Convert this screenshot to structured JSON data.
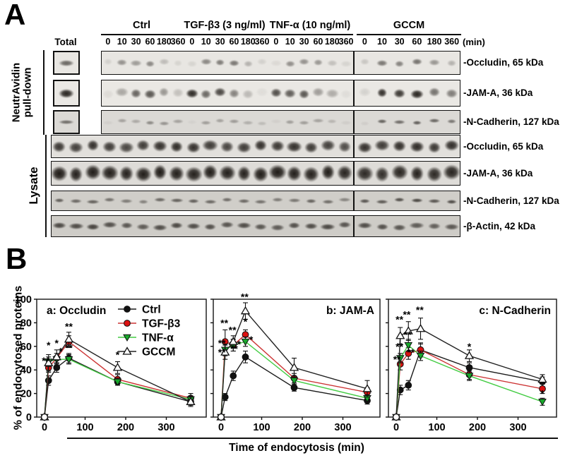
{
  "panel_a": {
    "label": "A",
    "total_label": "Total",
    "unit_label": "(min)",
    "pulldown_label_line1": "NeutrAvidin",
    "pulldown_label_line2": "pull-down",
    "lysate_label": "Lysate",
    "groups": [
      "Ctrl",
      "TGF-β3 (3 ng/ml)",
      "TNF-α (10 ng/ml)",
      "GCCM"
    ],
    "times": [
      "0",
      "10",
      "30",
      "60",
      "180",
      "360"
    ],
    "totals": [
      0.6,
      0.9,
      0.55
    ],
    "blots": [
      {
        "section": "pulldown",
        "label": "-Occludin, 65 kDa",
        "intensities": [
          0.1,
          0.4,
          0.35,
          0.45,
          0.2,
          0.08,
          0.08,
          0.45,
          0.5,
          0.52,
          0.25,
          0.1,
          0.06,
          0.42,
          0.4,
          0.38,
          0.18,
          0.08,
          0.15,
          0.52,
          0.48,
          0.55,
          0.38,
          0.25
        ]
      },
      {
        "section": "pulldown",
        "label": "-JAM-A, 36 kDa",
        "intensities": [
          0.06,
          0.3,
          0.62,
          0.68,
          0.38,
          0.18,
          0.88,
          0.6,
          0.75,
          0.48,
          0.22,
          0.05,
          0.72,
          0.65,
          0.68,
          0.35,
          0.28,
          0.05,
          0.1,
          0.85,
          0.82,
          0.9,
          0.55,
          0.5
        ]
      },
      {
        "section": "pulldown",
        "label": "-N-Cadherin, 127 kDa",
        "intensities": [
          0.05,
          0.28,
          0.25,
          0.4,
          0.35,
          0.28,
          0.04,
          0.3,
          0.28,
          0.32,
          0.22,
          0.15,
          0.05,
          0.3,
          0.3,
          0.28,
          0.18,
          0.06,
          0.06,
          0.6,
          0.55,
          0.62,
          0.58,
          0.5
        ]
      },
      {
        "section": "lysate",
        "label": "-Occludin, 65 kDa",
        "intensities": [
          0.82,
          0.78,
          0.85,
          0.8,
          0.75,
          0.8,
          0.85,
          0.88,
          0.85,
          0.8,
          0.76,
          0.8,
          0.85,
          0.82,
          0.85,
          0.8,
          0.78,
          0.72,
          0.85,
          0.8,
          0.86,
          0.88,
          0.82,
          0.86
        ]
      },
      {
        "section": "lysate",
        "label": "-JAM-A, 36 kDa",
        "intensities": [
          0.95,
          0.92,
          0.94,
          0.93,
          0.92,
          0.94,
          0.95,
          0.93,
          0.92,
          0.94,
          0.93,
          0.92,
          0.94,
          0.95,
          0.93,
          0.92,
          0.94,
          0.9,
          0.88,
          0.85,
          0.9,
          0.92,
          0.88,
          0.9
        ]
      },
      {
        "section": "lysate",
        "label": "-N-Cadherin, 127 kDa",
        "intensities": [
          0.6,
          0.55,
          0.58,
          0.5,
          0.45,
          0.42,
          0.55,
          0.58,
          0.6,
          0.55,
          0.52,
          0.55,
          0.5,
          0.45,
          0.48,
          0.58,
          0.52,
          0.4,
          0.65,
          0.62,
          0.68,
          0.72,
          0.65,
          0.7
        ]
      },
      {
        "section": "lysate",
        "label": "-β-Actin, 42 kDa",
        "intensities": [
          0.72,
          0.7,
          0.74,
          0.68,
          0.65,
          0.62,
          0.7,
          0.72,
          0.7,
          0.68,
          0.66,
          0.7,
          0.65,
          0.62,
          0.68,
          0.7,
          0.72,
          0.66,
          0.7,
          0.68,
          0.66,
          0.62,
          0.6,
          0.64
        ]
      }
    ]
  },
  "panel_b": {
    "label": "B",
    "ylabel": "% of endocytosed proteins",
    "xlabel": "Time of endocytosis (min)"
  },
  "chart_data": [
    {
      "type": "line",
      "title": "a: Occludin",
      "x": [
        0,
        10,
        30,
        60,
        180,
        360
      ],
      "xticks": [
        0,
        100,
        200,
        300
      ],
      "yticks": [
        0,
        20,
        40,
        60,
        80,
        100
      ],
      "xlim": [
        0,
        390
      ],
      "ylim": [
        0,
        100
      ],
      "legend_position": "inside-top-right-of-a",
      "series": [
        {
          "name": "Ctrl",
          "marker": "circle",
          "line_color": "#1a1a1a",
          "fill": "#111111",
          "values": [
            0,
            31,
            42,
            50,
            30,
            13
          ],
          "err": [
            0,
            4,
            4,
            4,
            3,
            3
          ]
        },
        {
          "name": "TGF-β3",
          "marker": "circle",
          "line_color": "#cc3333",
          "fill": "#dd1111",
          "values": [
            0,
            42,
            50,
            64,
            32,
            16
          ],
          "err": [
            0,
            4,
            4,
            5,
            4,
            4
          ]
        },
        {
          "name": "TNF-α",
          "marker": "triangle-down",
          "line_color": "#44cc44",
          "fill": "#17a82b",
          "values": [
            0,
            47,
            49,
            49,
            30,
            15
          ],
          "err": [
            0,
            4,
            3,
            4,
            3,
            3
          ]
        },
        {
          "name": "GCCM",
          "marker": "triangle-up",
          "line_color": "#222222",
          "fill": "#ffffff",
          "values": [
            0,
            46,
            51,
            66,
            42,
            13
          ],
          "err": [
            0,
            7,
            6,
            6,
            5,
            4
          ]
        }
      ],
      "annotations": [
        {
          "x": 10,
          "y": 58,
          "t": "*"
        },
        {
          "x": 3,
          "y": 45,
          "t": "**"
        },
        {
          "x": 30,
          "y": 60,
          "t": "*"
        },
        {
          "x": 40,
          "y": 53,
          "t": "*"
        },
        {
          "x": 60,
          "y": 74,
          "t": "**"
        },
        {
          "x": 60,
          "y": 56,
          "t": "**"
        },
        {
          "x": 180,
          "y": 50,
          "t": "*"
        }
      ]
    },
    {
      "type": "line",
      "title": "b: JAM-A",
      "x": [
        0,
        10,
        30,
        60,
        180,
        360
      ],
      "xticks": [
        0,
        100,
        200,
        300
      ],
      "yticks": [
        0,
        20,
        40,
        60,
        80,
        100
      ],
      "xlim": [
        0,
        390
      ],
      "ylim": [
        0,
        100
      ],
      "series": [
        {
          "name": "Ctrl",
          "marker": "circle",
          "line_color": "#1a1a1a",
          "fill": "#111111",
          "values": [
            0,
            17,
            35,
            51,
            25,
            14
          ],
          "err": [
            0,
            3,
            4,
            5,
            3,
            3
          ]
        },
        {
          "name": "TGF-β3",
          "marker": "circle",
          "line_color": "#cc3333",
          "fill": "#dd1111",
          "values": [
            0,
            64,
            61,
            70,
            33,
            21
          ],
          "err": [
            0,
            10,
            5,
            4,
            4,
            4
          ]
        },
        {
          "name": "TNF-α",
          "marker": "triangle-down",
          "line_color": "#44cc44",
          "fill": "#17a82b",
          "values": [
            0,
            57,
            61,
            64,
            31,
            16
          ],
          "err": [
            0,
            5,
            5,
            4,
            4,
            3
          ]
        },
        {
          "name": "GCCM",
          "marker": "triangle-up",
          "line_color": "#222222",
          "fill": "#ffffff",
          "values": [
            0,
            55,
            64,
            90,
            42,
            24
          ],
          "err": [
            0,
            6,
            5,
            7,
            8,
            7
          ]
        }
      ],
      "annotations": [
        {
          "x": 8,
          "y": 77,
          "t": "**"
        },
        {
          "x": 2,
          "y": 60,
          "t": "**"
        },
        {
          "x": 2,
          "y": 52,
          "t": "**"
        },
        {
          "x": 28,
          "y": 71,
          "t": "**"
        },
        {
          "x": 32,
          "y": 55,
          "t": "**"
        },
        {
          "x": 44,
          "y": 59,
          "t": "*"
        },
        {
          "x": 58,
          "y": 99,
          "t": "**"
        },
        {
          "x": 60,
          "y": 78,
          "t": "*"
        },
        {
          "x": 74,
          "y": 63,
          "t": "*"
        }
      ]
    },
    {
      "type": "line",
      "title": "c: N-Cadherin",
      "x": [
        0,
        10,
        30,
        60,
        180,
        360
      ],
      "xticks": [
        0,
        100,
        200,
        300
      ],
      "yticks": [
        0,
        20,
        40,
        60,
        80,
        100
      ],
      "xlim": [
        0,
        390
      ],
      "ylim": [
        0,
        100
      ],
      "series": [
        {
          "name": "Ctrl",
          "marker": "circle",
          "line_color": "#1a1a1a",
          "fill": "#111111",
          "values": [
            0,
            23,
            27,
            57,
            42,
            30
          ],
          "err": [
            0,
            4,
            4,
            5,
            4,
            4
          ]
        },
        {
          "name": "TGF-β3",
          "marker": "circle",
          "line_color": "#cc3333",
          "fill": "#dd1111",
          "values": [
            0,
            45,
            54,
            57,
            36,
            24
          ],
          "err": [
            0,
            5,
            5,
            6,
            4,
            4
          ]
        },
        {
          "name": "TNF-α",
          "marker": "triangle-down",
          "line_color": "#44cc44",
          "fill": "#17a82b",
          "values": [
            0,
            50,
            61,
            52,
            35,
            13
          ],
          "err": [
            0,
            4,
            5,
            4,
            4,
            3
          ]
        },
        {
          "name": "GCCM",
          "marker": "triangle-up",
          "line_color": "#222222",
          "fill": "#ffffff",
          "values": [
            0,
            69,
            73,
            75,
            52,
            32
          ],
          "err": [
            0,
            7,
            8,
            9,
            5,
            4
          ]
        }
      ],
      "annotations": [
        {
          "x": 8,
          "y": 80,
          "t": "**"
        },
        {
          "x": 2,
          "y": 46,
          "t": "**"
        },
        {
          "x": 8,
          "y": 57,
          "t": "**"
        },
        {
          "x": 26,
          "y": 84,
          "t": "**"
        },
        {
          "x": 28,
          "y": 67,
          "t": "**"
        },
        {
          "x": 36,
          "y": 52,
          "t": "**"
        },
        {
          "x": 58,
          "y": 88,
          "t": "**"
        },
        {
          "x": 180,
          "y": 57,
          "t": "*"
        },
        {
          "x": 360,
          "y": 17,
          "t": "*"
        }
      ]
    }
  ]
}
